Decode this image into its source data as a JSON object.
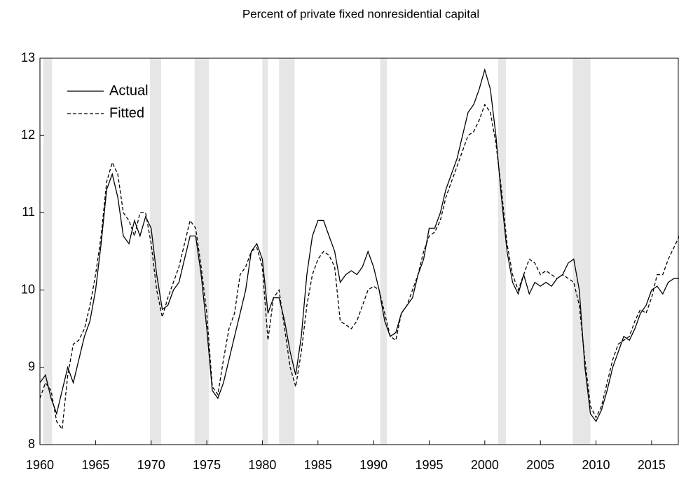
{
  "chart_data": {
    "type": "line",
    "title": "Percent of private fixed nonresidential capital",
    "x": [
      1960,
      1960.5,
      1961,
      1961.5,
      1962,
      1962.5,
      1963,
      1963.5,
      1964,
      1964.5,
      1965,
      1965.5,
      1966,
      1966.5,
      1967,
      1967.5,
      1968,
      1968.5,
      1969,
      1969.5,
      1970,
      1970.5,
      1971,
      1971.5,
      1972,
      1972.5,
      1973,
      1973.5,
      1974,
      1974.5,
      1975,
      1975.5,
      1976,
      1976.5,
      1977,
      1977.5,
      1978,
      1978.5,
      1979,
      1979.5,
      1980,
      1980.5,
      1981,
      1981.5,
      1982,
      1982.5,
      1983,
      1983.5,
      1984,
      1984.5,
      1985,
      1985.5,
      1986,
      1986.5,
      1987,
      1987.5,
      1988,
      1988.5,
      1989,
      1989.5,
      1990,
      1990.5,
      1991,
      1991.5,
      1992,
      1992.5,
      1993,
      1993.5,
      1994,
      1994.5,
      1995,
      1995.5,
      1996,
      1996.5,
      1997,
      1997.5,
      1998,
      1998.5,
      1999,
      1999.5,
      2000,
      2000.5,
      2001,
      2001.5,
      2002,
      2002.5,
      2003,
      2003.5,
      2004,
      2004.5,
      2005,
      2005.5,
      2006,
      2006.5,
      2007,
      2007.5,
      2008,
      2008.5,
      2009,
      2009.5,
      2010,
      2010.5,
      2011,
      2011.5,
      2012,
      2012.5,
      2013,
      2013.5,
      2014,
      2014.5,
      2015,
      2015.5,
      2016,
      2016.5,
      2017,
      2017.5
    ],
    "series": [
      {
        "name": "Actual",
        "color": "#000000",
        "style": "solid",
        "values": [
          8.8,
          8.9,
          8.6,
          8.4,
          8.7,
          9.0,
          8.8,
          9.1,
          9.4,
          9.6,
          10.0,
          10.6,
          11.3,
          11.5,
          11.2,
          10.7,
          10.6,
          10.9,
          10.7,
          10.95,
          10.8,
          10.2,
          9.75,
          9.8,
          10.0,
          10.1,
          10.4,
          10.7,
          10.7,
          10.2,
          9.5,
          8.7,
          8.6,
          8.8,
          9.1,
          9.4,
          9.7,
          10.0,
          10.5,
          10.6,
          10.4,
          9.7,
          9.9,
          9.9,
          9.6,
          9.2,
          8.9,
          9.4,
          10.2,
          10.7,
          10.9,
          10.9,
          10.7,
          10.5,
          10.1,
          10.2,
          10.25,
          10.2,
          10.3,
          10.5,
          10.3,
          10.0,
          9.6,
          9.4,
          9.45,
          9.7,
          9.8,
          9.9,
          10.2,
          10.4,
          10.8,
          10.8,
          11.0,
          11.3,
          11.5,
          11.7,
          12.0,
          12.3,
          12.4,
          12.6,
          12.85,
          12.6,
          12.0,
          11.2,
          10.5,
          10.1,
          9.95,
          10.2,
          9.95,
          10.1,
          10.05,
          10.1,
          10.05,
          10.15,
          10.2,
          10.35,
          10.4,
          10.0,
          9.0,
          8.4,
          8.3,
          8.45,
          8.7,
          9.0,
          9.2,
          9.4,
          9.35,
          9.5,
          9.7,
          9.8,
          10.0,
          10.05,
          9.95,
          10.1,
          10.15,
          10.15
        ]
      },
      {
        "name": "Fitted",
        "color": "#000000",
        "style": "dashed",
        "values": [
          8.6,
          8.8,
          8.7,
          8.3,
          8.2,
          8.9,
          9.3,
          9.35,
          9.5,
          9.8,
          10.2,
          10.7,
          11.4,
          11.65,
          11.5,
          11.0,
          10.9,
          10.7,
          11.0,
          11.0,
          10.6,
          10.0,
          9.65,
          9.9,
          10.1,
          10.3,
          10.6,
          10.9,
          10.8,
          10.3,
          9.7,
          8.75,
          8.65,
          9.1,
          9.5,
          9.7,
          10.2,
          10.3,
          10.5,
          10.55,
          10.3,
          9.35,
          9.9,
          10.0,
          9.5,
          9.0,
          8.75,
          9.2,
          9.8,
          10.2,
          10.4,
          10.5,
          10.45,
          10.3,
          9.6,
          9.55,
          9.5,
          9.6,
          9.8,
          10.0,
          10.05,
          10.0,
          9.7,
          9.4,
          9.35,
          9.7,
          9.8,
          10.0,
          10.2,
          10.5,
          10.7,
          10.75,
          10.9,
          11.2,
          11.4,
          11.6,
          11.8,
          12.0,
          12.05,
          12.2,
          12.4,
          12.3,
          11.9,
          11.3,
          10.6,
          10.2,
          10.0,
          10.2,
          10.4,
          10.35,
          10.2,
          10.25,
          10.2,
          10.15,
          10.2,
          10.15,
          10.1,
          9.8,
          9.1,
          8.5,
          8.35,
          8.5,
          8.8,
          9.1,
          9.3,
          9.35,
          9.4,
          9.6,
          9.75,
          9.7,
          9.9,
          10.2,
          10.2,
          10.4,
          10.55,
          10.7
        ]
      }
    ],
    "recessions": [
      [
        1960.3,
        1961.1
      ],
      [
        1969.9,
        1970.9
      ],
      [
        1973.9,
        1975.2
      ],
      [
        1980.0,
        1980.5
      ],
      [
        1981.5,
        1982.9
      ],
      [
        1990.6,
        1991.2
      ],
      [
        2001.2,
        2001.9
      ],
      [
        2007.9,
        2009.5
      ]
    ],
    "recession_color": "#e6e6e6",
    "xlim": [
      1960,
      2017.4
    ],
    "xticks": [
      1960,
      1965,
      1970,
      1975,
      1980,
      1985,
      1990,
      1995,
      2000,
      2005,
      2010,
      2015
    ],
    "ylim": [
      8,
      13
    ],
    "yticks": [
      8,
      9,
      10,
      11,
      12,
      13
    ],
    "legend": "upper left"
  }
}
